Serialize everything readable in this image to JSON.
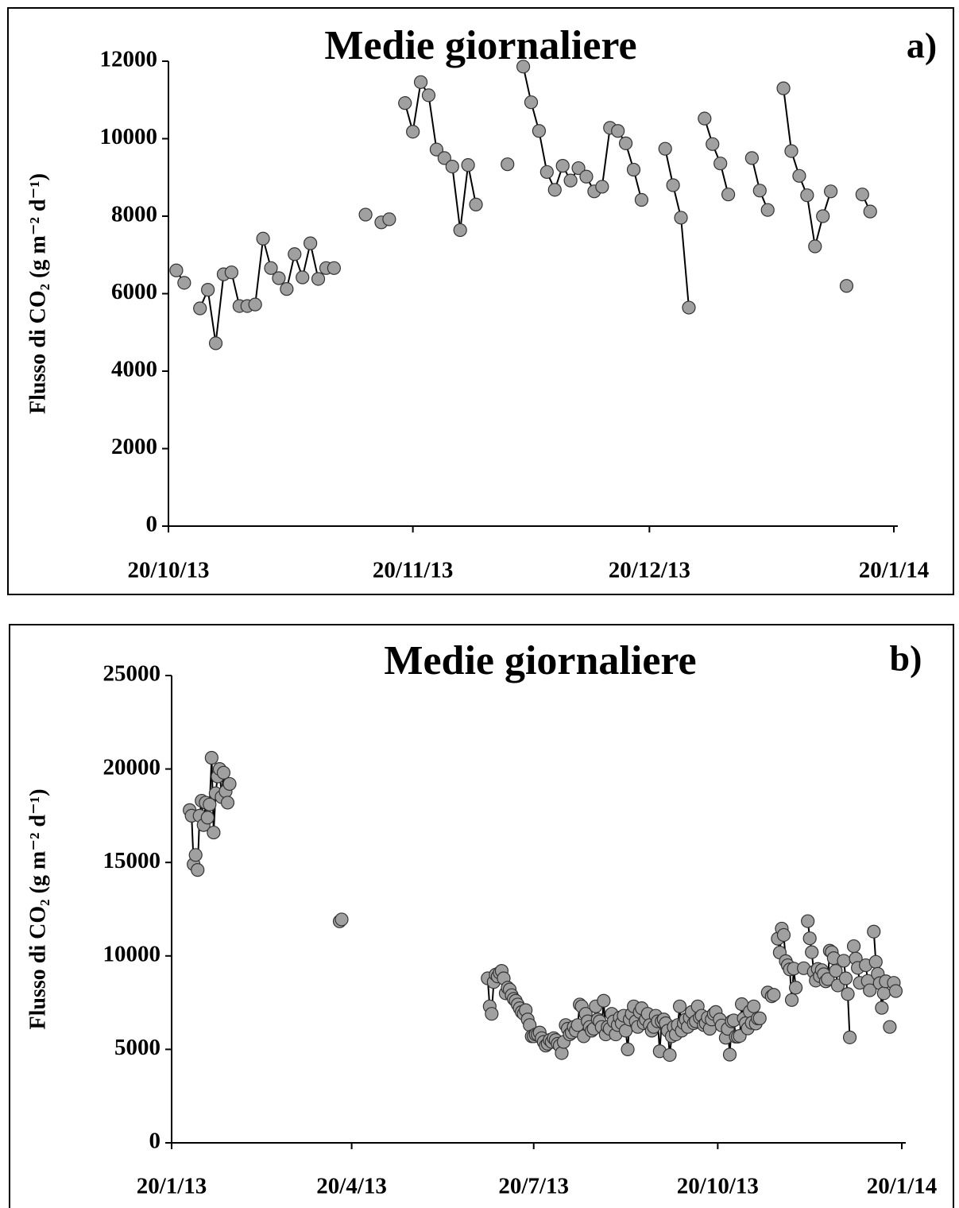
{
  "chart_data": [
    {
      "type": "line",
      "title": "Medie giornaliere",
      "panel": "a)",
      "y_label": "Flusso di CO₂ (g m⁻² d⁻¹)",
      "xlim": [
        "20/10/13",
        "20/1/14"
      ],
      "xticks": [
        "20/10/13",
        "20/11/13",
        "20/12/13",
        "20/1/14"
      ],
      "ylim": [
        0,
        12000
      ],
      "yticks": [
        0,
        2000,
        4000,
        6000,
        8000,
        10000,
        12000
      ],
      "line_color": "#000000",
      "marker_color": "#a0a0a0",
      "x": [
        "21/10/13",
        "22/10/13",
        "23/10/13",
        "24/10/13",
        "25/10/13",
        "26/10/13",
        "27/10/13",
        "28/10/13",
        "29/10/13",
        "30/10/13",
        "31/10/13",
        "1/11/13",
        "2/11/13",
        "3/11/13",
        "4/11/13",
        "5/11/13",
        "6/11/13",
        "7/11/13",
        "8/11/13",
        "9/11/13",
        "10/11/13",
        "11/11/13",
        "14/11/13",
        "15/11/13",
        "16/11/13",
        "17/11/13",
        "18/11/13",
        "19/11/13",
        "20/11/13",
        "21/11/13",
        "22/11/13",
        "23/11/13",
        "24/11/13",
        "25/11/13",
        "26/11/13",
        "27/11/13",
        "28/11/13",
        "29/11/13",
        "2/12/13",
        "3/12/13",
        "4/12/13",
        "5/12/13",
        "6/12/13",
        "7/12/13",
        "8/12/13",
        "9/12/13",
        "10/12/13",
        "11/12/13",
        "12/12/13",
        "13/12/13",
        "14/12/13",
        "15/12/13",
        "16/12/13",
        "17/12/13",
        "18/12/13",
        "19/12/13",
        "20/12/13",
        "22/12/13",
        "23/12/13",
        "24/12/13",
        "25/12/13",
        "26/12/13",
        "27/12/13",
        "28/12/13",
        "29/12/13",
        "30/12/13",
        "31/12/13",
        "2/1/14",
        "3/1/14",
        "4/1/14",
        "5/1/14",
        "6/1/14",
        "7/1/14",
        "8/1/14",
        "9/1/14",
        "10/1/14",
        "11/1/14",
        "12/1/14",
        "13/1/14",
        "14/1/14",
        "15/1/14",
        "16/1/14",
        "17/1/14"
      ],
      "values": [
        6600,
        6280,
        null,
        5620,
        6100,
        4720,
        6500,
        6550,
        5680,
        5680,
        5720,
        7420,
        6660,
        6400,
        6120,
        7020,
        6420,
        7300,
        6380,
        6660,
        6660,
        null,
        8040,
        null,
        7840,
        7920,
        null,
        10920,
        10180,
        11460,
        11120,
        9720,
        9500,
        9280,
        7640,
        9320,
        8300,
        null,
        9340,
        null,
        11860,
        10940,
        10200,
        9140,
        8680,
        9300,
        8920,
        9240,
        9020,
        8640,
        8760,
        10280,
        10200,
        9880,
        9200,
        8420,
        null,
        9740,
        8800,
        7960,
        5640,
        null,
        10520,
        9860,
        9360,
        8560,
        null,
        9500,
        8660,
        8160,
        null,
        11300,
        9680,
        9040,
        8540,
        7220,
        8000,
        8640,
        null,
        6200,
        null,
        8560,
        8120
      ]
    },
    {
      "type": "line",
      "title": "Medie giornaliere",
      "panel": "b)",
      "y_label": "Flusso di CO₂ (g m⁻² d⁻¹)",
      "xlim": [
        "20/1/13",
        "20/1/14"
      ],
      "xticks": [
        "20/1/13",
        "20/4/13",
        "20/7/13",
        "20/10/13",
        "20/1/14"
      ],
      "ylim": [
        0,
        25000
      ],
      "yticks": [
        0,
        5000,
        10000,
        15000,
        20000,
        25000
      ],
      "line_color": "#000000",
      "marker_color": "#a0a0a0",
      "x": [
        "29/1/13",
        "30/1/13",
        "31/1/13",
        "1/2/13",
        "2/2/13",
        "3/2/13",
        "4/2/13",
        "5/2/13",
        "6/2/13",
        "7/2/13",
        "8/2/13",
        "9/2/13",
        "10/2/13",
        "11/2/13",
        "12/2/13",
        "13/2/13",
        "14/2/13",
        "15/2/13",
        "16/2/13",
        "17/2/13",
        "18/2/13",
        "19/2/13",
        "14/4/13",
        "15/4/13",
        "16/4/13",
        "27/6/13",
        "28/6/13",
        "29/6/13",
        "30/6/13",
        "1/7/13",
        "2/7/13",
        "3/7/13",
        "4/7/13",
        "5/7/13",
        "6/7/13",
        "7/7/13",
        "8/7/13",
        "9/7/13",
        "10/7/13",
        "11/7/13",
        "12/7/13",
        "13/7/13",
        "14/7/13",
        "15/7/13",
        "16/7/13",
        "17/7/13",
        "18/7/13",
        "19/7/13",
        "20/7/13",
        "21/7/13",
        "22/7/13",
        "23/7/13",
        "24/7/13",
        "25/7/13",
        "26/7/13",
        "27/7/13",
        "28/7/13",
        "29/7/13",
        "30/7/13",
        "31/7/13",
        "1/8/13",
        "2/8/13",
        "3/8/13",
        "4/8/13",
        "5/8/13",
        "6/8/13",
        "7/8/13",
        "8/8/13",
        "9/8/13",
        "10/8/13",
        "11/8/13",
        "12/8/13",
        "13/8/13",
        "14/8/13",
        "15/8/13",
        "16/8/13",
        "17/8/13",
        "18/8/13",
        "19/8/13",
        "20/8/13",
        "21/8/13",
        "22/8/13",
        "23/8/13",
        "24/8/13",
        "25/8/13",
        "26/8/13",
        "27/8/13",
        "28/8/13",
        "29/8/13",
        "30/8/13",
        "31/8/13",
        "1/9/13",
        "2/9/13",
        "3/9/13",
        "4/9/13",
        "5/9/13",
        "6/9/13",
        "7/9/13",
        "8/9/13",
        "9/9/13",
        "10/9/13",
        "11/9/13",
        "12/9/13",
        "13/9/13",
        "14/9/13",
        "15/9/13",
        "16/9/13",
        "17/9/13",
        "18/9/13",
        "19/9/13",
        "20/9/13",
        "21/9/13",
        "22/9/13",
        "23/9/13",
        "24/9/13",
        "25/9/13",
        "26/9/13",
        "27/9/13",
        "28/9/13",
        "29/9/13",
        "30/9/13",
        "1/10/13",
        "2/10/13",
        "3/10/13",
        "4/10/13",
        "5/10/13",
        "6/10/13",
        "7/10/13",
        "8/10/13",
        "9/10/13",
        "10/10/13",
        "11/10/13",
        "12/10/13",
        "13/10/13",
        "14/10/13",
        "15/10/13",
        "16/10/13",
        "17/10/13",
        "18/10/13",
        "19/10/13",
        "20/10/13",
        "21/10/13",
        "22/10/13",
        "23/10/13",
        "24/10/13",
        "25/10/13",
        "26/10/13",
        "27/10/13",
        "28/10/13",
        "29/10/13",
        "30/10/13",
        "31/10/13",
        "1/11/13",
        "2/11/13",
        "3/11/13",
        "4/11/13",
        "5/11/13",
        "6/11/13",
        "7/11/13",
        "8/11/13",
        "9/11/13",
        "10/11/13",
        "11/11/13",
        "14/11/13",
        "15/11/13",
        "16/11/13",
        "17/11/13",
        "18/11/13",
        "19/11/13",
        "20/11/13",
        "21/11/13",
        "22/11/13",
        "23/11/13",
        "24/11/13",
        "25/11/13",
        "26/11/13",
        "27/11/13",
        "28/11/13",
        "29/11/13",
        "2/12/13",
        "3/12/13",
        "4/12/13",
        "5/12/13",
        "6/12/13",
        "7/12/13",
        "8/12/13",
        "9/12/13",
        "10/12/13",
        "11/12/13",
        "12/12/13",
        "13/12/13",
        "14/12/13",
        "15/12/13",
        "16/12/13",
        "17/12/13",
        "18/12/13",
        "19/12/13",
        "20/12/13",
        "22/12/13",
        "23/12/13",
        "24/12/13",
        "25/12/13",
        "26/12/13",
        "27/12/13",
        "28/12/13",
        "29/12/13",
        "30/12/13",
        "31/12/13",
        "2/1/14",
        "3/1/14",
        "4/1/14",
        "5/1/14",
        "6/1/14",
        "7/1/14",
        "8/1/14",
        "9/1/14",
        "10/1/14",
        "11/1/14",
        "12/1/14",
        "13/1/14",
        "14/1/14",
        "15/1/14",
        "16/1/14",
        "17/1/14"
      ],
      "values": [
        17800,
        17500,
        14900,
        15400,
        14600,
        17500,
        18300,
        17000,
        18200,
        17400,
        18100,
        20600,
        16600,
        18700,
        19600,
        20000,
        18500,
        19800,
        18800,
        18200,
        19200,
        null,
        11850,
        11950,
        null,
        8800,
        7300,
        6900,
        8600,
        9000,
        8900,
        9100,
        9200,
        8800,
        8000,
        8300,
        8200,
        7900,
        7700,
        7600,
        7400,
        7200,
        7000,
        6900,
        7100,
        6600,
        6300,
        5700,
        5700,
        5800,
        5800,
        5900,
        5600,
        5400,
        5200,
        5300,
        5500,
        5400,
        5600,
        5500,
        5300,
        5200,
        4800,
        5400,
        6300,
        6100,
        5800,
        5900,
        6200,
        6000,
        6300,
        7400,
        7300,
        5700,
        6900,
        6500,
        6200,
        6000,
        6100,
        7300,
        6600,
        6500,
        6200,
        7600,
        5800,
        6200,
        6100,
        6900,
        6500,
        5800,
        6300,
        6700,
        6400,
        6800,
        6000,
        5000,
        6600,
        6900,
        7300,
        6500,
        6200,
        7000,
        7200,
        6400,
        6600,
        6900,
        6300,
        6000,
        6200,
        6800,
        6500,
        4900,
        6500,
        6600,
        6400,
        6000,
        4700,
        5700,
        6200,
        5800,
        6300,
        7300,
        6000,
        6400,
        6600,
        6200,
        6700,
        7000,
        6400,
        6500,
        7300,
        6700,
        6800,
        6300,
        6400,
        6700,
        6100,
        6600,
        6900,
        7000,
        null,
        6600,
        6280,
        null,
        5620,
        6100,
        4720,
        6500,
        6550,
        5680,
        5680,
        5720,
        7420,
        6660,
        6400,
        6120,
        7020,
        6420,
        7300,
        6380,
        6660,
        6660,
        null,
        8040,
        null,
        7840,
        7920,
        null,
        10920,
        10180,
        11460,
        11120,
        9720,
        9500,
        9280,
        7640,
        9320,
        8300,
        null,
        9340,
        null,
        11860,
        10940,
        10200,
        9140,
        8680,
        9300,
        8920,
        9240,
        9020,
        8640,
        8760,
        10280,
        10200,
        9880,
        9200,
        8420,
        null,
        9740,
        8800,
        7960,
        5640,
        null,
        10520,
        9860,
        9360,
        8560,
        null,
        9500,
        8660,
        8160,
        null,
        11300,
        9680,
        9040,
        8540,
        7220,
        8000,
        8640,
        null,
        6200,
        null,
        8560,
        8120
      ]
    }
  ]
}
